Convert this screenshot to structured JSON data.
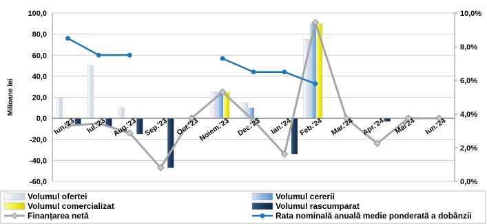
{
  "chart_data": {
    "type": "bar",
    "categories": [
      "Iun.'23",
      "Iul.'23",
      "Aug.'23",
      "Sep.'23",
      "Oct.'23",
      "Noiem.'23",
      "Dec.'23",
      "Ian.'24",
      "Feb.'24",
      "Mar.'24",
      "Apr.'24",
      "Mai'24",
      "Iun.'24"
    ],
    "ylabel": "Milioane lei",
    "ylim": [
      -60,
      100
    ],
    "y_ticks": [
      "-60,0",
      "-40,0",
      "-20,0",
      "0,0",
      "20,0",
      "40,0",
      "60,0",
      "80,0",
      "100,0"
    ],
    "y2lim": [
      0,
      10
    ],
    "y2_ticks": [
      "0,0%",
      "2,0%",
      "4,0%",
      "6,0%",
      "8,0%",
      "10,0%"
    ],
    "grid": true,
    "legend_position": "bottom",
    "series": [
      {
        "name": "Volumul ofertei",
        "kind": "bar",
        "axis": "left",
        "color": "#e8ecf4",
        "values": [
          20,
          50,
          10,
          0,
          0,
          25,
          15,
          0,
          75,
          0,
          0,
          0,
          0
        ]
      },
      {
        "name": "Volumul cererii",
        "kind": "bar",
        "axis": "left",
        "color": "#9cc0e6",
        "values": [
          0,
          0,
          0,
          0,
          0,
          25,
          10,
          0,
          90,
          0,
          0,
          0,
          0
        ]
      },
      {
        "name": "Volumul comercializat",
        "kind": "bar",
        "axis": "left",
        "color": "#f4ef3a",
        "values": [
          0,
          0,
          0,
          0,
          0,
          25,
          0,
          0,
          90,
          0,
          0,
          0,
          0
        ]
      },
      {
        "name": "Volumul rascumparat",
        "kind": "bar",
        "axis": "left",
        "color": "#1f3b5f",
        "values": [
          -7,
          -8,
          -15,
          -47,
          0,
          0,
          0,
          -34,
          0,
          0,
          -3,
          0,
          0
        ]
      },
      {
        "name": "Finanțarea netă",
        "kind": "line",
        "axis": "left",
        "color": "#a0a0a0",
        "values": [
          -7,
          -5,
          -14,
          -47,
          0,
          25,
          -2,
          -34,
          91,
          0,
          -24,
          0,
          0
        ]
      },
      {
        "name": "Rata nominală anuală medie ponderată a dobânzii",
        "kind": "line",
        "axis": "right",
        "color": "#1f77b4",
        "segments": [
          {
            "categories": [
              "Iun.'23",
              "Iul.'23",
              "Aug.'23"
            ],
            "values": [
              8.5,
              7.5,
              7.5
            ]
          },
          {
            "categories": [
              "Noiem.'23",
              "Dec.'23",
              "Ian.'24",
              "Feb.'24"
            ],
            "values": [
              7.3,
              6.5,
              6.5,
              5.8
            ]
          }
        ]
      }
    ]
  },
  "legend": [
    {
      "label": "Volumul ofertei",
      "symbol": "bar-light"
    },
    {
      "label": "Volumul cererii",
      "symbol": "bar-blue"
    },
    {
      "label": "Volumul comercializat",
      "symbol": "bar-yellow"
    },
    {
      "label": "Volumul rascumparat",
      "symbol": "bar-navy"
    },
    {
      "label": "Finanțarea netă",
      "symbol": "line-gray-diamond"
    },
    {
      "label": "Rata nominală anuală medie ponderată a dobânzii",
      "symbol": "line-blue-dot"
    }
  ]
}
